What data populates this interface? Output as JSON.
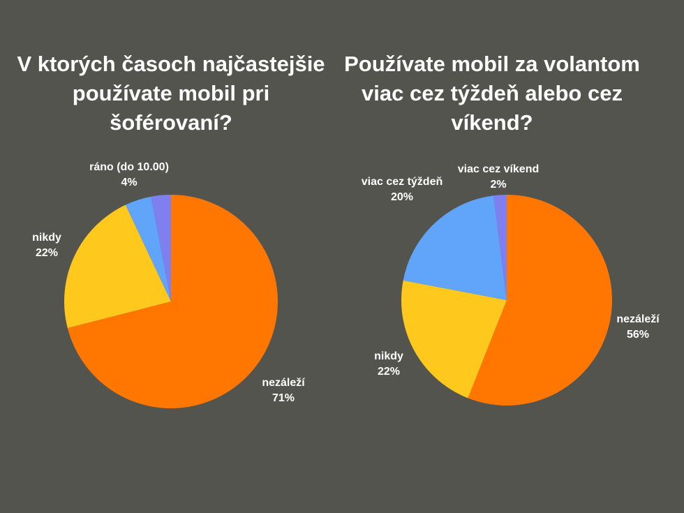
{
  "chart_data": [
    {
      "type": "pie",
      "title_lines": [
        "V ktorých časoch najčastejšie",
        "používate mobil pri",
        "šoférovaní?"
      ],
      "slices": [
        {
          "name": "nezáleží",
          "percent_label": "71%",
          "value": 71,
          "color": "#ff7700"
        },
        {
          "name": "nikdy",
          "percent_label": "22%",
          "value": 22,
          "color": "#ffc81c"
        },
        {
          "name": "ráno (do 10.00)",
          "percent_label": "4%",
          "value": 4,
          "color": "#60a5fa"
        },
        {
          "name": "",
          "percent_label": "",
          "value": 3,
          "color": "#7f7ff0"
        }
      ],
      "start_angle_deg": 0,
      "direction": "clockwise"
    },
    {
      "type": "pie",
      "title_lines": [
        "Používate mobil za volantom",
        "viac cez týždeň alebo cez",
        "víkend?"
      ],
      "slices": [
        {
          "name": "nezáleží",
          "percent_label": "56%",
          "value": 56,
          "color": "#ff7700"
        },
        {
          "name": "nikdy",
          "percent_label": "22%",
          "value": 22,
          "color": "#ffc81c"
        },
        {
          "name": "viac cez týždeň",
          "percent_label": "20%",
          "value": 20,
          "color": "#60a5fa"
        },
        {
          "name": "viac cez víkend",
          "percent_label": "2%",
          "value": 2,
          "color": "#7f7ff0"
        }
      ],
      "start_angle_deg": 0,
      "direction": "clockwise"
    }
  ]
}
